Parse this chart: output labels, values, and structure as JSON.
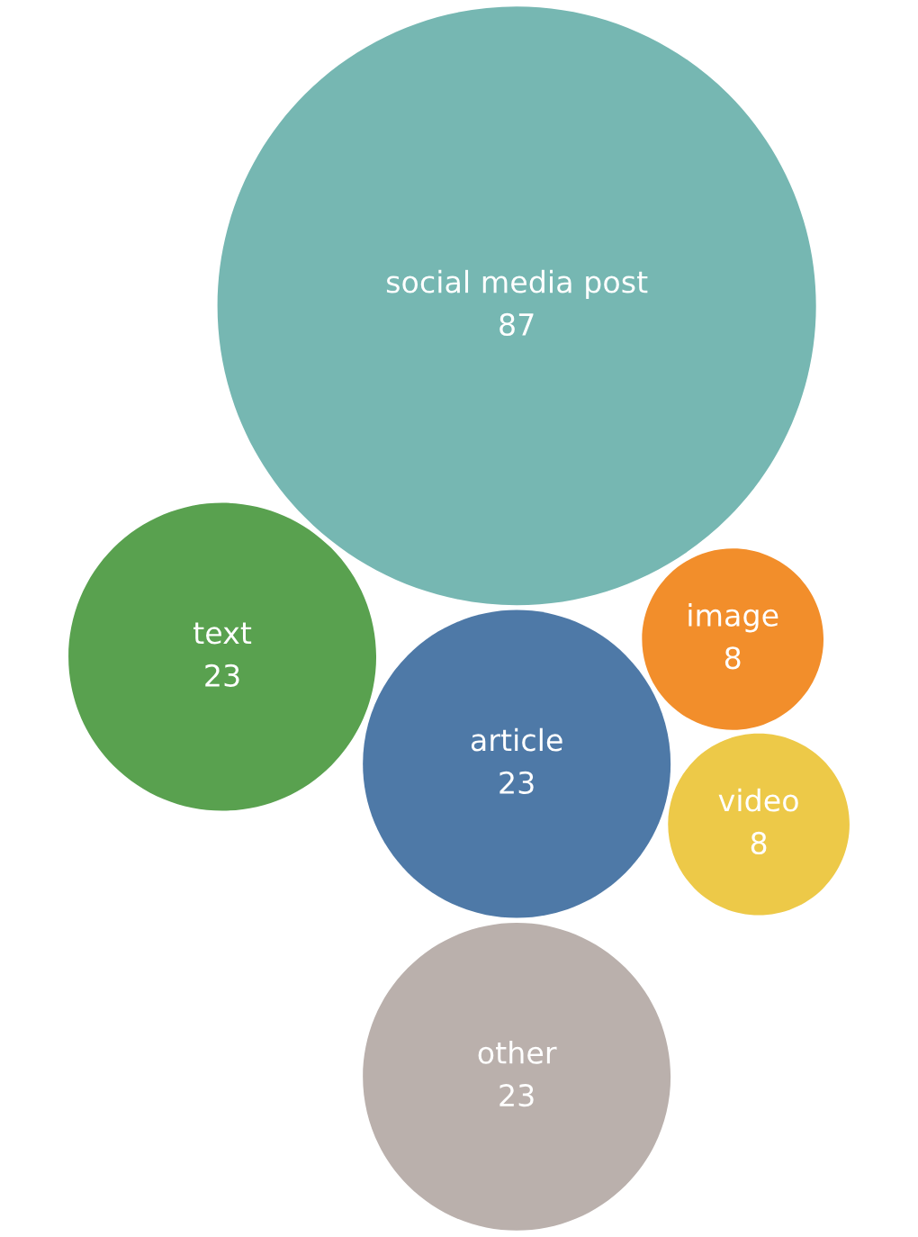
{
  "chart_data": {
    "type": "other",
    "categories": [
      "social media post",
      "article",
      "image",
      "text",
      "other",
      "video"
    ],
    "values": [
      87,
      23,
      8,
      23,
      23,
      8
    ],
    "colors": [
      "#76b7b2",
      "#4e79a7",
      "#f28e2b",
      "#59a14f",
      "#bab0ac",
      "#edc948"
    ],
    "data_labels": true
  }
}
